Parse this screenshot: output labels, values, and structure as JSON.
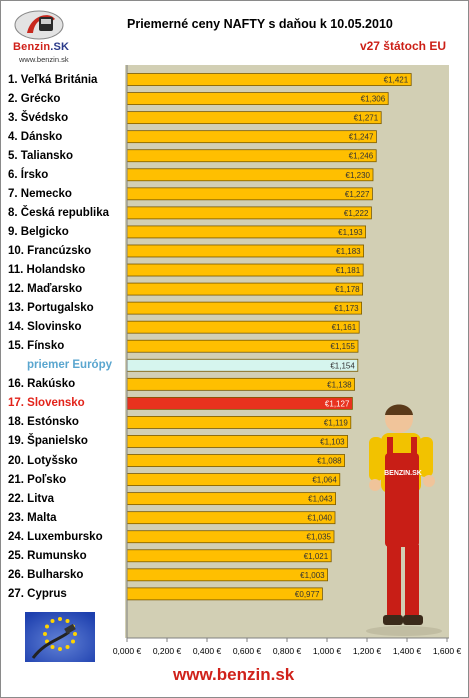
{
  "header": {
    "title": "Priemerné ceny NAFTY s daňou k 10.05.2010",
    "subtitle": "v27 štátoch EU"
  },
  "logo": {
    "brand_main": "Benzin",
    "brand_suffix": ".SK",
    "url": "www.benzin.sk"
  },
  "footer": {
    "url": "www.benzin.sk"
  },
  "mechanic_badge": "BENZIN.SK",
  "colors": {
    "bar_fill": "#ffbf00",
    "bar_stroke": "#7a5a00",
    "average_fill": "#d6f5ee",
    "highlight_fill": "#e8321e",
    "plot_background": "#d2cfb4",
    "title_red": "#cc1f16"
  },
  "chart_data": {
    "type": "bar",
    "orientation": "horizontal",
    "title": "Priemerné ceny NAFTY s daňou k 10.05.2010",
    "subtitle": "v27 štátoch EU",
    "xlim": [
      0,
      1.6
    ],
    "grid": false,
    "x_ticks": [
      "0,000 €",
      "0,200 €",
      "0,400 €",
      "0,600 €",
      "0,800 €",
      "1,000 €",
      "1,200 €",
      "1,400 €",
      "1,600 €"
    ],
    "categories": [
      "1. Veľká Británia",
      "2. Grécko",
      "3. Švédsko",
      "4. Dánsko",
      "5. Taliansko",
      "6. Írsko",
      "7. Nemecko",
      "8. Česká republika",
      "9. Belgicko",
      "10. Francúzsko",
      "11. Holandsko",
      "12. Maďarsko",
      "13. Portugalsko",
      "14. Slovinsko",
      "15. Fínsko",
      "priemer Európy",
      "16. Rakúsko",
      "17. Slovensko",
      "18. Estónsko",
      "19. Španielsko",
      "20. Lotyšsko",
      "21. Poľsko",
      "22. Litva",
      "23. Malta",
      "24. Luxembursko",
      "25. Rumunsko",
      "26. Bulharsko",
      "27. Cyprus"
    ],
    "values": [
      1.421,
      1.306,
      1.271,
      1.247,
      1.246,
      1.23,
      1.227,
      1.222,
      1.193,
      1.183,
      1.181,
      1.178,
      1.173,
      1.161,
      1.155,
      1.154,
      1.138,
      1.127,
      1.119,
      1.103,
      1.088,
      1.064,
      1.043,
      1.04,
      1.035,
      1.021,
      1.003,
      0.977
    ],
    "value_labels": [
      "€1,421",
      "€1,306",
      "€1,271",
      "€1,247",
      "€1,246",
      "€1,230",
      "€1,227",
      "€1,222",
      "€1,193",
      "€1,183",
      "€1,181",
      "€1,178",
      "€1,173",
      "€1,161",
      "€1,155",
      "€1,154",
      "€1,138",
      "€1,127",
      "€1,119",
      "€1,103",
      "€1,088",
      "€1,064",
      "€1,043",
      "€1,040",
      "€1,035",
      "€1,021",
      "€1,003",
      "€0,977"
    ],
    "average_index": 15,
    "highlight_index": 17
  }
}
